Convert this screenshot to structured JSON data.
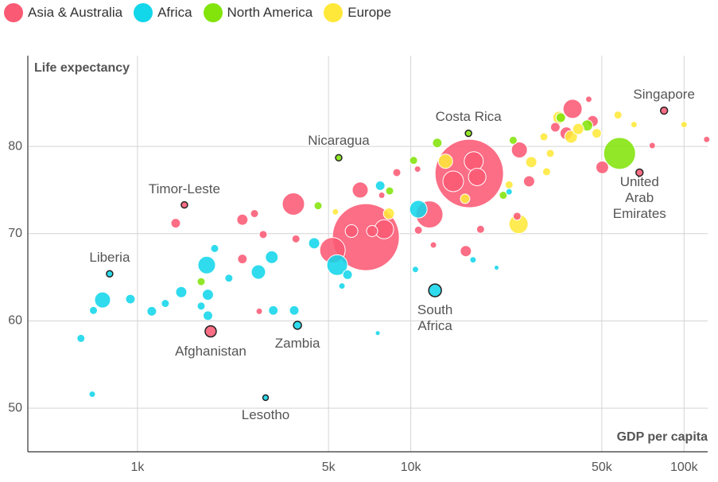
{
  "chart_data": {
    "type": "bubble",
    "y_label": "Life expectancy",
    "x_label": "GDP per capita",
    "xscale": "log",
    "grid": true,
    "xlim": [
      397,
      122000
    ],
    "ylim": [
      45,
      90.4
    ],
    "xticks": [
      {
        "value": 1000,
        "label": "1k"
      },
      {
        "value": 5000,
        "label": "5k"
      },
      {
        "value": 10000,
        "label": "10k"
      },
      {
        "value": 50000,
        "label": "50k"
      },
      {
        "value": 100000,
        "label": "100k"
      }
    ],
    "yticks": [
      50,
      60,
      70,
      80
    ],
    "series": [
      {
        "name": "Asia & Australia",
        "color": "#fb5a74",
        "x": [
          84500,
          68700,
          1485,
          1853,
          16370,
          6850,
          3720,
          5170,
          11700,
          24970,
          39100,
          6530,
          7990,
          17000,
          17500,
          14300,
          15900,
          24500,
          27100,
          37100,
          46300,
          50200,
          1380,
          2420,
          2420,
          2884,
          2680,
          3800,
          2790,
          8890,
          10660,
          12100,
          18000,
          7830,
          10590,
          76500,
          121000,
          33800,
          44800,
          6070,
          7220
        ],
        "values": [
          84.1,
          77.0,
          73.3,
          58.8,
          76.9,
          69.6,
          73.4,
          68.1,
          72.2,
          79.6,
          84.3,
          75.0,
          70.5,
          78.3,
          76.5,
          76.0,
          68.0,
          72.0,
          76.0,
          81.5,
          82.9,
          77.6,
          71.2,
          71.6,
          67.1,
          69.9,
          72.3,
          69.4,
          61.1,
          77.0,
          70.4,
          68.7,
          70.5,
          74.4,
          77.4,
          80.1,
          80.8,
          82.2,
          85.4,
          70.3,
          70.3
        ],
        "sizes": [
          15,
          15,
          12,
          37,
          1400,
          1340,
          148,
          194,
          219,
          76,
          109,
          76,
          109,
          109,
          92,
          128,
          37,
          19,
          37,
          48,
          37,
          48,
          27,
          37,
          27,
          19,
          19,
          19,
          12,
          19,
          19,
          12,
          19,
          12,
          12,
          12,
          12,
          27,
          12,
          48,
          37
        ],
        "labels": [
          "Singapore",
          "United\nArab Emirates",
          "Timor-Leste",
          "Afghanistan",
          null,
          null,
          null,
          null,
          null,
          null,
          null,
          null,
          null,
          null,
          null,
          null,
          null,
          null,
          null,
          null,
          null,
          null,
          null,
          null,
          null,
          null,
          null,
          null,
          null,
          null,
          null,
          null,
          null,
          null,
          null,
          null,
          null,
          null,
          null,
          null,
          null
        ]
      },
      {
        "name": "Africa",
        "color": "#12d6ea",
        "x": [
          791,
          3850,
          2943,
          12270,
          745,
          621,
          683,
          690,
          942,
          1128,
          1264,
          1446,
          1792,
          1810,
          1810,
          1710,
          1916,
          2160,
          2770,
          3100,
          3140,
          3745,
          4430,
          5380,
          5870,
          7730,
          10660,
          10400,
          7570,
          5600,
          20600,
          16900,
          22900
        ],
        "values": [
          65.4,
          59.5,
          51.2,
          63.5,
          62.4,
          58.0,
          51.6,
          61.2,
          62.5,
          61.1,
          62.0,
          63.3,
          66.4,
          63.0,
          60.6,
          61.7,
          68.3,
          64.9,
          65.6,
          67.3,
          61.2,
          61.2,
          68.9,
          66.4,
          65.3,
          75.5,
          72.8,
          65.9,
          58.6,
          64.0,
          66.1,
          67.0,
          74.8
        ],
        "sizes": [
          12,
          19,
          9,
          48,
          76,
          19,
          12,
          19,
          27,
          27,
          19,
          37,
          92,
          37,
          27,
          19,
          19,
          19,
          61,
          48,
          27,
          27,
          37,
          128,
          27,
          27,
          92,
          12,
          7,
          12,
          7,
          12,
          12
        ],
        "labels": [
          "Liberia",
          "Zambia",
          "Lesotho",
          "South\nAfrica",
          null,
          null,
          null,
          null,
          null,
          null,
          null,
          null,
          null,
          null,
          null,
          null,
          null,
          null,
          null,
          null,
          null,
          null,
          null,
          null,
          null,
          null,
          null,
          null,
          null,
          null,
          null,
          null,
          null
        ]
      },
      {
        "name": "North America",
        "color": "#82e40a",
        "x": [
          16260,
          5450,
          58100,
          44200,
          12500,
          10240,
          4580,
          1710,
          23700,
          8370,
          35400,
          21800
        ],
        "values": [
          81.5,
          78.7,
          79.2,
          82.4,
          80.4,
          78.4,
          73.2,
          64.5,
          80.7,
          74.9,
          83.3,
          74.4
        ],
        "sizes": [
          12,
          12,
          303,
          37,
          27,
          19,
          19,
          19,
          19,
          19,
          27,
          19
        ],
        "labels": [
          "Costa Rica",
          "Nicaragua",
          null,
          null,
          null,
          null,
          null,
          null,
          null,
          null,
          null,
          null
        ]
      },
      {
        "name": "Europe",
        "color": "#ffe83a",
        "x": [
          24800,
          27600,
          34900,
          41000,
          47900,
          57300,
          65600,
          100000,
          32400,
          30700,
          8320,
          5300,
          13400,
          31400,
          22900,
          15800,
          38600
        ],
        "values": [
          71.1,
          78.2,
          83.3,
          82.0,
          81.5,
          83.6,
          82.5,
          82.5,
          79.2,
          81.1,
          72.3,
          72.5,
          78.3,
          77.1,
          75.6,
          74.0,
          81.1
        ],
        "sizes": [
          109,
          37,
          48,
          37,
          27,
          19,
          12,
          12,
          19,
          19,
          37,
          12,
          61,
          19,
          19,
          27,
          48
        ]
      }
    ]
  }
}
